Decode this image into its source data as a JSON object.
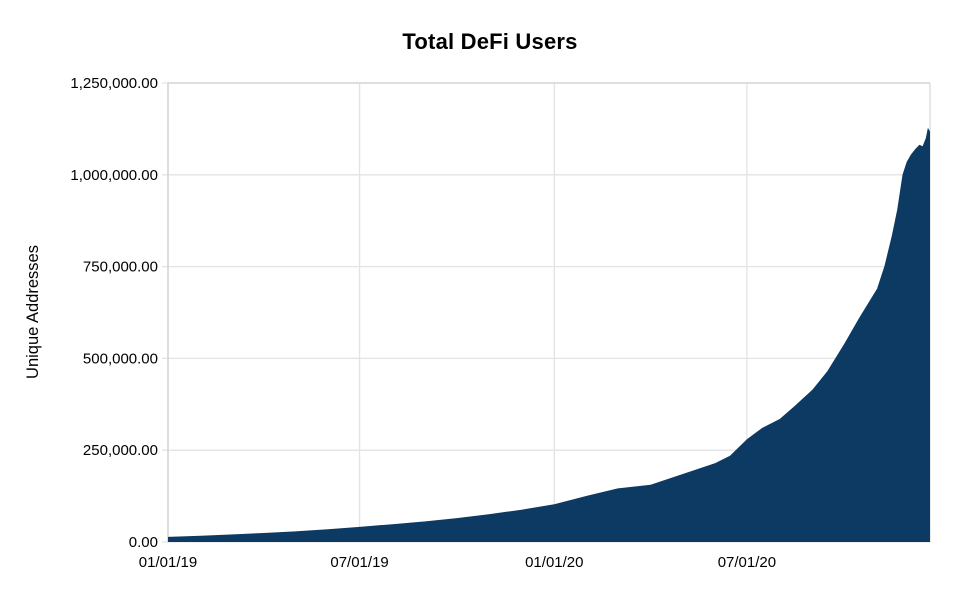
{
  "chart_data": {
    "type": "area",
    "title": "Total DeFi Users",
    "ylabel": "Unique Addresses",
    "xlabel": "",
    "ylim": [
      0,
      1250000
    ],
    "grid": true,
    "legend": false,
    "colors": {
      "area_fill": "#0d3a63",
      "gridline": "#e3e3e3",
      "border": "#cfcfcf",
      "text": "#000000",
      "background": "#ffffff"
    },
    "y_ticks": [
      {
        "value": 0,
        "label": "0.00"
      },
      {
        "value": 250000,
        "label": "250,000.00"
      },
      {
        "value": 500000,
        "label": "500,000.00"
      },
      {
        "value": 750000,
        "label": "750,000.00"
      },
      {
        "value": 1000000,
        "label": "1,000,000.00"
      },
      {
        "value": 1250000,
        "label": "1,250,000.00"
      }
    ],
    "x_ticks": [
      {
        "date": "2019-01-01",
        "label": "01/01/19"
      },
      {
        "date": "2019-07-01",
        "label": "07/01/19"
      },
      {
        "date": "2020-01-01",
        "label": "01/01/20"
      },
      {
        "date": "2020-07-01",
        "label": "07/01/20"
      }
    ],
    "series": [
      {
        "name": "Unique Addresses",
        "points": [
          [
            "2019-01-01",
            14000
          ],
          [
            "2019-02-01",
            17000
          ],
          [
            "2019-03-01",
            20500
          ],
          [
            "2019-04-01",
            24500
          ],
          [
            "2019-05-01",
            29000
          ],
          [
            "2019-06-01",
            34500
          ],
          [
            "2019-07-01",
            41000
          ],
          [
            "2019-08-01",
            48500
          ],
          [
            "2019-09-01",
            56000
          ],
          [
            "2019-10-01",
            65000
          ],
          [
            "2019-11-01",
            76000
          ],
          [
            "2019-12-01",
            88000
          ],
          [
            "2020-01-01",
            103000
          ],
          [
            "2020-02-01",
            126000
          ],
          [
            "2020-03-01",
            146000
          ],
          [
            "2020-04-01",
            156000
          ],
          [
            "2020-05-01",
            185000
          ],
          [
            "2020-06-01",
            215000
          ],
          [
            "2020-06-15",
            235000
          ],
          [
            "2020-07-01",
            280000
          ],
          [
            "2020-07-15",
            310000
          ],
          [
            "2020-08-01",
            335000
          ],
          [
            "2020-08-15",
            370000
          ],
          [
            "2020-09-01",
            415000
          ],
          [
            "2020-09-15",
            465000
          ],
          [
            "2020-10-01",
            540000
          ],
          [
            "2020-10-15",
            610000
          ],
          [
            "2020-11-01",
            690000
          ],
          [
            "2020-11-08",
            752000
          ],
          [
            "2020-11-15",
            835000
          ],
          [
            "2020-11-20",
            905000
          ],
          [
            "2020-11-25",
            1000000
          ],
          [
            "2020-11-29",
            1035000
          ],
          [
            "2020-12-03",
            1055000
          ],
          [
            "2020-12-07",
            1070000
          ],
          [
            "2020-12-11",
            1082000
          ],
          [
            "2020-12-14",
            1078000
          ],
          [
            "2020-12-17",
            1100000
          ],
          [
            "2020-12-19",
            1128000
          ],
          [
            "2020-12-21",
            1118000
          ]
        ]
      }
    ]
  }
}
